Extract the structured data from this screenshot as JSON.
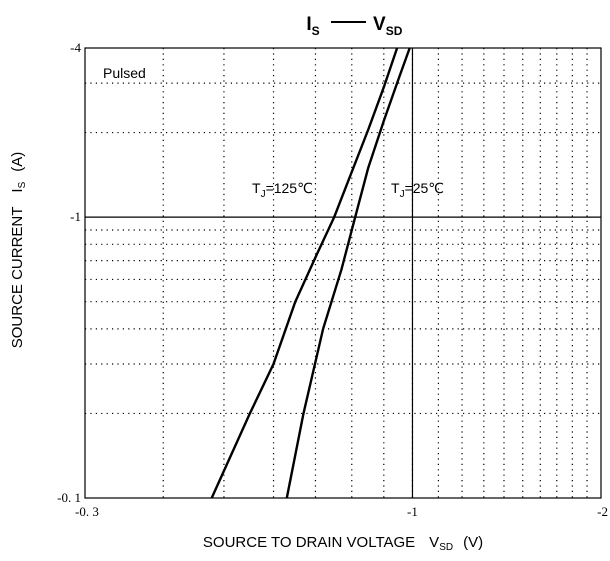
{
  "chart_data": {
    "type": "line",
    "title": {
      "left_main": "I",
      "left_sub": "S",
      "right_main": "V",
      "right_sub": "SD"
    },
    "xlabel": {
      "main": "SOURCE TO DRAIN VOLTAGE",
      "symbol": "V",
      "sub": "SD",
      "unit": "(V)"
    },
    "ylabel": {
      "main": "SOURCE CURRENT",
      "symbol": "I",
      "sub": "S",
      "unit": "(A)"
    },
    "x_scale": "log",
    "y_scale": "log",
    "xlim": [
      -0.3,
      -2
    ],
    "ylim": [
      -0.1,
      -4
    ],
    "x_ticks": [
      {
        "value": -0.3,
        "label": "-0. 3"
      },
      {
        "value": -1,
        "label": "-1"
      },
      {
        "value": -2,
        "label": "-2"
      }
    ],
    "y_ticks": [
      {
        "value": -0.1,
        "label": "-0. 1"
      },
      {
        "value": -1,
        "label": "-1"
      },
      {
        "value": -4,
        "label": "-4"
      }
    ],
    "grid": "dotted",
    "annotation": "Pulsed",
    "series": [
      {
        "name": "TJ=125℃",
        "label_main": "T",
        "label_sub": "J",
        "label_rest": "=125℃",
        "points": [
          [
            -0.478,
            -0.1
          ],
          [
            -0.55,
            -0.2
          ],
          [
            -0.6,
            -0.3
          ],
          [
            -0.65,
            -0.5
          ],
          [
            -0.7,
            -0.72
          ],
          [
            -0.75,
            -1.0
          ],
          [
            -0.8,
            -1.45
          ],
          [
            -0.85,
            -2.05
          ],
          [
            -0.9,
            -2.9
          ],
          [
            -0.945,
            -4.0
          ]
        ]
      },
      {
        "name": "TJ=25℃",
        "label_main": "T",
        "label_sub": "J",
        "label_rest": "=25℃",
        "points": [
          [
            -0.63,
            -0.1
          ],
          [
            -0.67,
            -0.2
          ],
          [
            -0.72,
            -0.4
          ],
          [
            -0.77,
            -0.65
          ],
          [
            -0.81,
            -1.0
          ],
          [
            -0.85,
            -1.5
          ],
          [
            -0.9,
            -2.2
          ],
          [
            -0.95,
            -3.1
          ],
          [
            -0.99,
            -4.0
          ]
        ]
      }
    ]
  }
}
